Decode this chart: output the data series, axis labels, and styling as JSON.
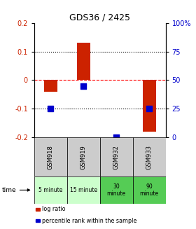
{
  "title": "GDS36 / 2425",
  "samples": [
    "GSM918",
    "GSM919",
    "GSM932",
    "GSM933"
  ],
  "time_labels": [
    "5 minute",
    "15 minute",
    "30\nminute",
    "90\nminute"
  ],
  "time_colors": [
    "#ccffcc",
    "#ccffcc",
    "#55cc55",
    "#55cc55"
  ],
  "log_ratios": [
    -0.04,
    0.13,
    0.0,
    -0.18
  ],
  "percentile_ranks": [
    25,
    45,
    0,
    25
  ],
  "ylim": [
    -0.2,
    0.2
  ],
  "y2lim": [
    0,
    100
  ],
  "yticks": [
    -0.2,
    -0.1,
    0.0,
    0.1,
    0.2
  ],
  "ytick_labels": [
    "-0.2",
    "-0.1",
    "0",
    "0.1",
    "0.2"
  ],
  "y2ticks": [
    0,
    25,
    50,
    75,
    100
  ],
  "y2tick_labels": [
    "0",
    "25",
    "50",
    "75",
    "100%"
  ],
  "hlines": [
    0.1,
    0.0,
    -0.1
  ],
  "hline_styles": [
    "dotted",
    "dashed",
    "dotted"
  ],
  "hline_colors": [
    "black",
    "red",
    "black"
  ],
  "bar_color": "#cc2200",
  "point_color": "#0000cc",
  "bar_width": 0.4,
  "point_size": 30,
  "left_label_color": "#cc2200",
  "right_label_color": "#0000cc",
  "header_bg": "#cccccc",
  "legend_items": [
    {
      "label": "log ratio",
      "color": "#cc2200"
    },
    {
      "label": "percentile rank within the sample",
      "color": "#0000cc"
    }
  ]
}
